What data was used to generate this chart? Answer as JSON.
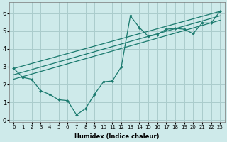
{
  "xlabel": "Humidex (Indice chaleur)",
  "bg_color": "#ceeaea",
  "line_color": "#1a7a6e",
  "grid_color": "#aacccc",
  "xlim": [
    -0.5,
    23.5
  ],
  "ylim": [
    -0.1,
    6.6
  ],
  "xticks": [
    0,
    1,
    2,
    3,
    4,
    5,
    6,
    7,
    8,
    9,
    10,
    11,
    12,
    13,
    14,
    15,
    16,
    17,
    18,
    19,
    20,
    21,
    22,
    23
  ],
  "yticks": [
    0,
    1,
    2,
    3,
    4,
    5,
    6
  ],
  "series1_x": [
    0,
    1,
    2,
    3,
    4,
    5,
    6,
    7,
    8,
    9,
    10,
    11,
    12,
    13,
    14,
    15,
    16,
    17,
    18,
    19,
    20,
    21,
    22,
    23
  ],
  "series1_y": [
    2.9,
    2.4,
    2.3,
    1.65,
    1.45,
    1.15,
    1.1,
    0.3,
    0.65,
    1.45,
    2.15,
    2.2,
    3.0,
    5.85,
    5.2,
    4.7,
    4.8,
    5.1,
    5.15,
    5.1,
    4.85,
    5.45,
    5.45,
    6.1
  ],
  "line2_x": [
    0,
    23
  ],
  "line2_y": [
    2.9,
    6.1
  ],
  "line3_x": [
    0,
    23
  ],
  "line3_y": [
    2.55,
    5.85
  ],
  "line4_x": [
    0,
    23
  ],
  "line4_y": [
    2.3,
    5.6
  ],
  "xlabel_fontsize": 6,
  "tick_fontsize_x": 5,
  "tick_fontsize_y": 6
}
